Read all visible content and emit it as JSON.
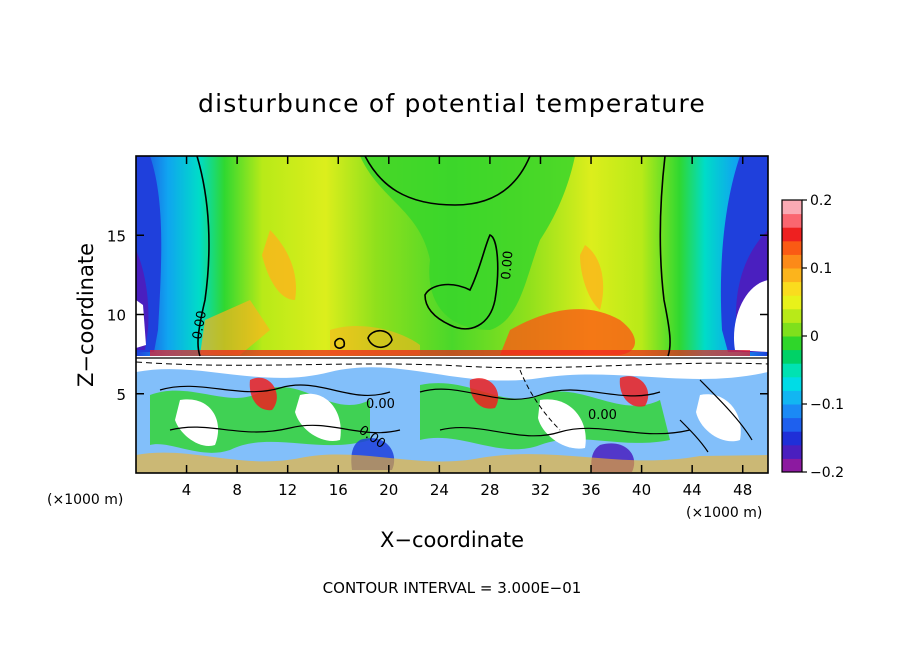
{
  "chart_data": {
    "type": "heatmap",
    "title": "disturbunce of potential temperature",
    "xlabel": "X−coordinate",
    "ylabel": "Z−coordinate",
    "x_unit": "(×1000 m)",
    "y_unit": "(×1000 m)",
    "xlim": [
      0,
      50
    ],
    "ylim": [
      0,
      20
    ],
    "x_ticks": [
      "4",
      "8",
      "12",
      "16",
      "20",
      "24",
      "28",
      "32",
      "36",
      "40",
      "44",
      "48"
    ],
    "y_ticks": [
      "5",
      "10",
      "15"
    ],
    "colorbar": {
      "range": [
        -0.2,
        0.2
      ],
      "tick_labels": [
        "0.2",
        "0.1",
        "0",
        "−0.1",
        "−0.2"
      ],
      "colors": [
        "#8c1aa0",
        "#4a1fbf",
        "#1f2fd8",
        "#1e60ee",
        "#1b8af5",
        "#12b6f2",
        "#00dce6",
        "#00e2b2",
        "#00d266",
        "#2fd62a",
        "#7fe01c",
        "#b8ea18",
        "#e8f21a",
        "#fadc1e",
        "#fcb41c",
        "#fc8a18",
        "#fa5a14",
        "#ee2020",
        "#fa6670",
        "#faaab4"
      ],
      "placement": "right"
    },
    "contour_labels": [
      "0.00",
      "0.00",
      "0.00",
      "0.00",
      "0.00"
    ],
    "footer": "CONTOUR INTERVAL = 3.000E−01"
  }
}
